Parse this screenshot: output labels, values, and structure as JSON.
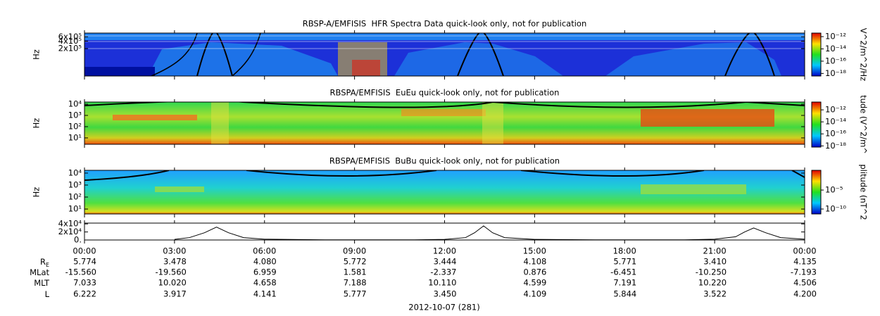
{
  "chart_data": [
    {
      "type": "spectrogram",
      "title": "RBSP-A/EMFISIS  HFR Spectra Data quick-look only, not for publication",
      "ylabel": "Hz",
      "ylog": true,
      "ylim": [
        15500,
        850000
      ],
      "yticks": [
        {
          "value": 200000,
          "label": "2x10⁵"
        },
        {
          "value": 400000,
          "label": "4x10⁵"
        },
        {
          "value": 600000,
          "label": "6x10⁵"
        }
      ],
      "colorbar": {
        "title": "V^2/m^2/Hz",
        "lim": [
          3.8e-19,
          3.8e-12
        ],
        "ticks": [
          {
            "value": 1e-12,
            "label": "10⁻¹²"
          },
          {
            "value": 1e-14,
            "label": "10⁻¹⁴"
          },
          {
            "value": 1e-16,
            "label": "10⁻¹⁶"
          },
          {
            "value": 1e-18,
            "label": "10⁻¹⁸"
          }
        ]
      }
    },
    {
      "type": "spectrogram",
      "title": "RBSPA/EMFISIS  EuEu quick-look only, not for publication",
      "ylabel": "Hz",
      "ylog": true,
      "ylim": [
        2.7,
        15500
      ],
      "yticks": [
        {
          "value": 10,
          "label": "10¹"
        },
        {
          "value": 100,
          "label": "10²"
        },
        {
          "value": 1000,
          "label": "10³"
        },
        {
          "value": 10000,
          "label": "10⁴"
        }
      ],
      "colorbar": {
        "title": "tude (V^2/m^",
        "lim": [
          6.3e-19,
          2e-11
        ],
        "ticks": [
          {
            "value": 1e-12,
            "label": "10⁻¹²"
          },
          {
            "value": 1e-14,
            "label": "10⁻¹⁴"
          },
          {
            "value": 1e-16,
            "label": "10⁻¹⁶"
          },
          {
            "value": 1e-18,
            "label": "10⁻¹⁸"
          }
        ]
      }
    },
    {
      "type": "spectrogram",
      "title": "RBSPA/EMFISIS  BuBu quick-look only, not for publication",
      "ylabel": "Hz",
      "ylog": true,
      "ylim": [
        3.9,
        17000
      ],
      "yticks": [
        {
          "value": 10,
          "label": "10¹"
        },
        {
          "value": 100,
          "label": "10²"
        },
        {
          "value": 1000,
          "label": "10³"
        },
        {
          "value": 10000,
          "label": "10⁴"
        }
      ],
      "colorbar": {
        "title": "plitude (nT^2",
        "lim": [
          5e-12,
          1.6
        ],
        "ticks": [
          {
            "value": 1e-05,
            "label": "10⁻⁵"
          },
          {
            "value": 1e-10,
            "label": "10⁻¹⁰"
          }
        ]
      }
    },
    {
      "type": "line",
      "color": "#000000",
      "ylim": [
        0,
        42000
      ],
      "yticks": [
        {
          "value": 0,
          "label": "0."
        },
        {
          "value": 20000,
          "label": "2x10⁴"
        },
        {
          "value": 40000,
          "label": "4x10⁴"
        }
      ],
      "xlim": [
        0,
        24
      ],
      "xticks": [
        {
          "value": 0,
          "label": "00:00"
        },
        {
          "value": 3,
          "label": "03:00"
        },
        {
          "value": 6,
          "label": "06:00"
        },
        {
          "value": 9,
          "label": "09:00"
        },
        {
          "value": 12,
          "label": "12:00"
        },
        {
          "value": 15,
          "label": "15:00"
        },
        {
          "value": 18,
          "label": "18:00"
        },
        {
          "value": 21,
          "label": "21:00"
        },
        {
          "value": 24,
          "label": "00:00"
        }
      ],
      "x": [
        3,
        3.5,
        4,
        4.4,
        4.8,
        5.3,
        6,
        8,
        11,
        12,
        12.7,
        13,
        13.3,
        13.6,
        14,
        15,
        17,
        20,
        21,
        21.7,
        22,
        22.3,
        22.7,
        23.2,
        24
      ],
      "values": [
        1500,
        6000,
        18000,
        32000,
        18000,
        6000,
        2000,
        500,
        500,
        1500,
        6000,
        18000,
        35000,
        18000,
        6000,
        1500,
        500,
        500,
        2000,
        8000,
        20000,
        30000,
        18000,
        6000,
        2000
      ]
    }
  ],
  "ephemeris": {
    "rows": [
      {
        "label": "R",
        "sub": "E",
        "values": [
          "5.774",
          "3.478",
          "4.080",
          "5.772",
          "3.444",
          "4.108",
          "5.771",
          "3.410",
          "4.135"
        ]
      },
      {
        "label": "MLat",
        "values": [
          "-15.560",
          "-19.560",
          "6.959",
          "1.581",
          "-2.337",
          "0.876",
          "-6.451",
          "-10.250",
          "-7.193"
        ]
      },
      {
        "label": "MLT",
        "values": [
          "7.033",
          "10.020",
          "4.658",
          "7.188",
          "10.110",
          "4.599",
          "7.191",
          "10.220",
          "4.506"
        ]
      },
      {
        "label": "L",
        "values": [
          "6.222",
          "3.917",
          "4.141",
          "5.777",
          "3.450",
          "4.109",
          "5.844",
          "3.522",
          "4.200"
        ]
      }
    ]
  },
  "date": "2012-10-07 (281)"
}
